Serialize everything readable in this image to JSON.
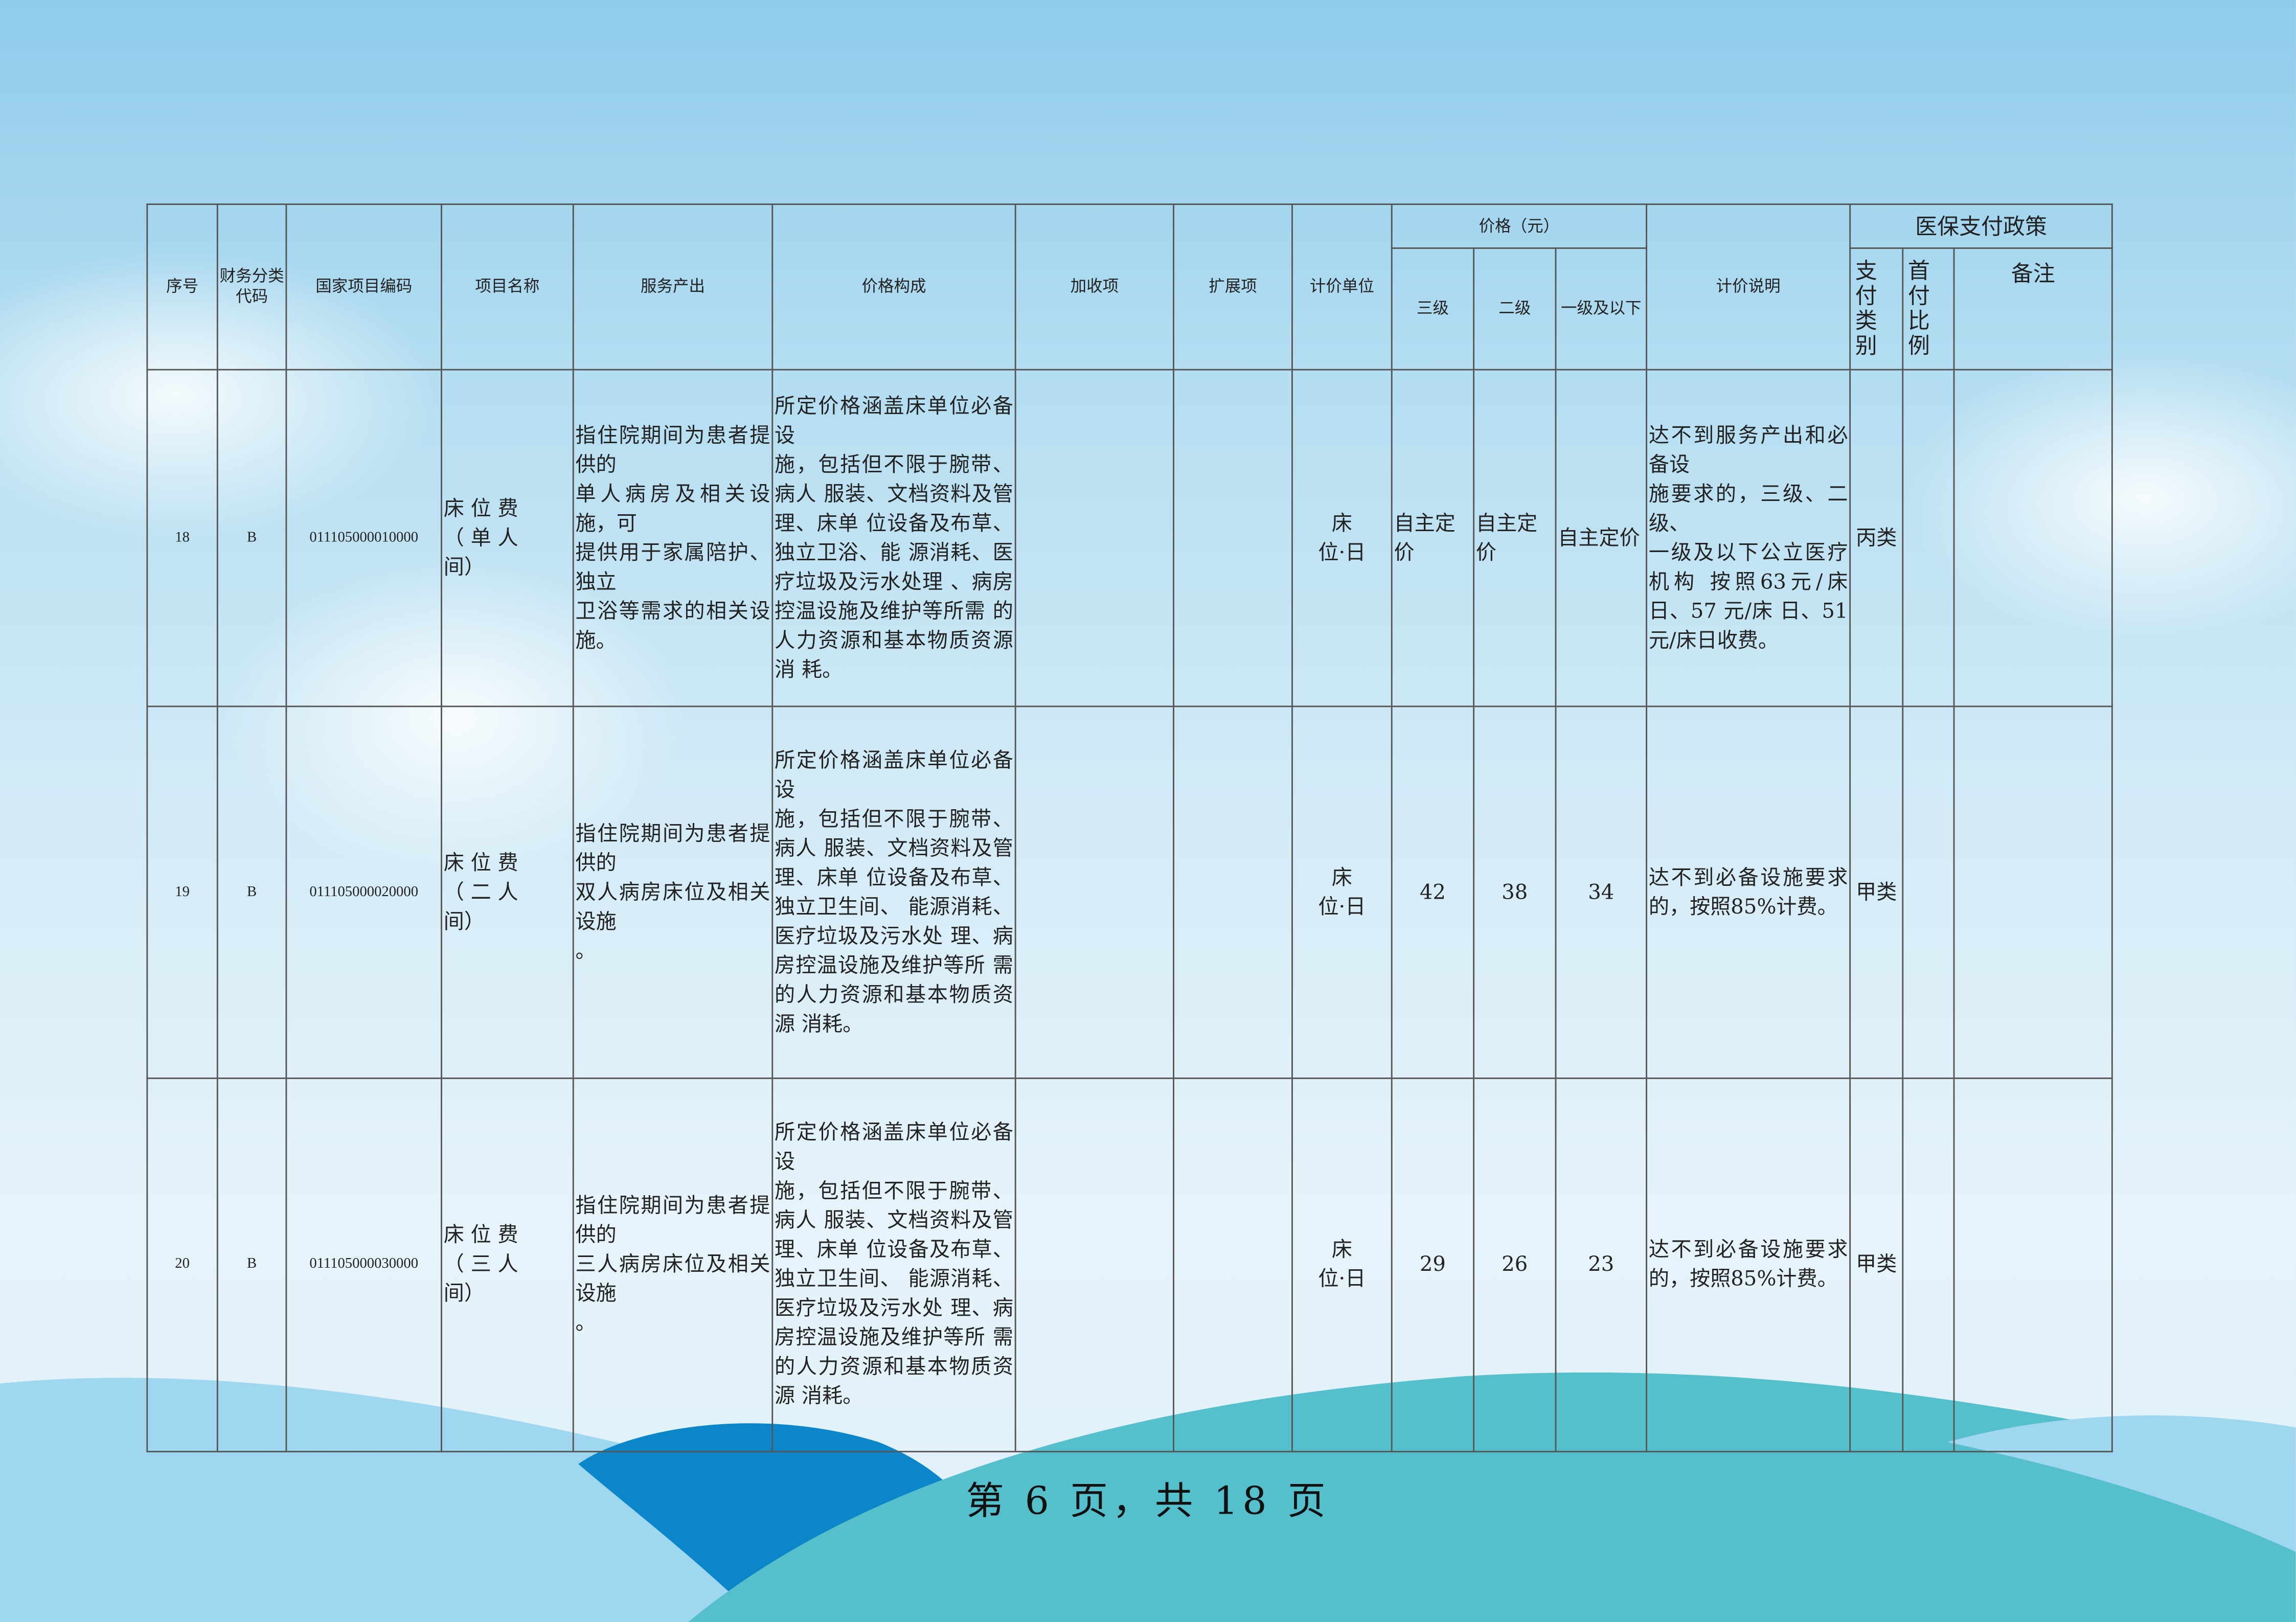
{
  "header": {
    "seq": "序号",
    "fin_code": "财务分类代码",
    "national_code": "国家项目编码",
    "item_name": "项目名称",
    "service_output": "服务产出",
    "price_composition": "价格构成",
    "surcharge": "加收项",
    "extension": "扩展项",
    "unit": "计价单位",
    "price_group": "价格（元）",
    "level3": "三级",
    "level2": "二级",
    "level1": "一级及以下",
    "pricing_note": "计价说明",
    "insurance_group": "医保支付政策",
    "pay_type": "支付类别",
    "first_pay_ratio": "首付比例",
    "remark": "备注"
  },
  "rows": [
    {
      "seq": "18",
      "fin_code": "B",
      "national_code": "011105000010000",
      "item_name": "床 位 费\n（ 单 人\n间）",
      "service_output": "指住院期间为患者提供的\n单人病房及相关设施，可\n提供用于家属陪护、独立\n卫浴等需求的相关设施。",
      "price_composition": "所定价格涵盖床单位必备设\n施，包括但不限于腕带、病人 服装、文档资料及管理、床单 位设备及布草、独立卫浴、能 源消耗、医疗垃圾及污水处理 、病房控温设施及维护等所需 的人力资源和基本物质资源消 耗。",
      "surcharge": "",
      "extension": "",
      "unit": "床\n位·日",
      "level3": "自主定价",
      "level2": "自主定价",
      "level1": "自主定价",
      "pricing_note": "达不到服务产出和必备设\n施要求的，三级、二级、\n一级及以下公立医疗机构 按照63元/床日、57 元/床 日、51 元/床日收费。",
      "pay_type": "丙类",
      "first_pay_ratio": "",
      "remark": ""
    },
    {
      "seq": "19",
      "fin_code": "B",
      "national_code": "011105000020000",
      "item_name": "床 位 费\n（ 二 人\n间）",
      "service_output": "指住院期间为患者提供的\n双人病房床位及相关设施\n。",
      "price_composition": "所定价格涵盖床单位必备设\n施，包括但不限于腕带、病人 服装、文档资料及管理、床单 位设备及布草、独立卫生间、 能源消耗、医疗垃圾及污水处 理、病房控温设施及维护等所 需的人力资源和基本物质资源 消耗。",
      "surcharge": "",
      "extension": "",
      "unit": "床\n位·日",
      "level3": "42",
      "level2": "38",
      "level1": "34",
      "pricing_note": "达不到必备设施要求的，按照85%计费。",
      "pay_type": "甲类",
      "first_pay_ratio": "",
      "remark": ""
    },
    {
      "seq": "20",
      "fin_code": "B",
      "national_code": "011105000030000",
      "item_name": "床 位 费\n（ 三 人\n间）",
      "service_output": "指住院期间为患者提供的\n三人病房床位及相关设施\n。",
      "price_composition": "所定价格涵盖床单位必备设\n施，包括但不限于腕带、病人 服装、文档资料及管理、床单 位设备及布草、独立卫生间、 能源消耗、医疗垃圾及污水处 理、病房控温设施及维护等所 需的人力资源和基本物质资源 消耗。",
      "surcharge": "",
      "extension": "",
      "unit": "床\n位·日",
      "level3": "29",
      "level2": "26",
      "level1": "23",
      "pricing_note": "达不到必备设施要求的，按照85%计费。",
      "pay_type": "甲类",
      "first_pay_ratio": "",
      "remark": ""
    }
  ],
  "footer": {
    "page_text": "第 6 页，共 18 页"
  },
  "colors": {
    "sky_top": "#8fcbeb",
    "wave_dark": "#0b87c9",
    "wave_teal": "#55bfcc",
    "wave_light": "#9fd6f0"
  }
}
